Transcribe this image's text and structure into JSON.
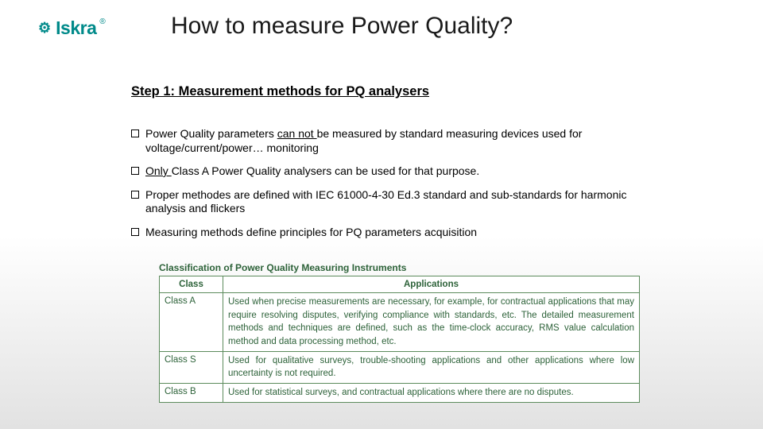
{
  "logo": {
    "brand": "Iskra",
    "reg": "®"
  },
  "title": "How to measure Power Quality?",
  "subtitle": "Step 1: Measurement methods for PQ analysers",
  "bullets": [
    {
      "pre": "Power Quality parameters ",
      "u": "can not ",
      "post": "be measured by standard measuring devices used for voltage/current/power… monitoring"
    },
    {
      "pre": "",
      "u": "Only ",
      "post": "Class A Power Quality analysers  can be used for that purpose."
    },
    {
      "pre": "Proper methodes are defined with IEC 61000-4-30 Ed.3 standard and sub-standards for harmonic analysis and flickers",
      "u": "",
      "post": ""
    },
    {
      "pre": "Measuring methods define principles for PQ parameters acquisition",
      "u": "",
      "post": ""
    }
  ],
  "table": {
    "caption": "Classification of Power Quality Measuring Instruments",
    "headers": [
      "Class",
      "Applications"
    ],
    "rows": [
      {
        "cls": "Class A",
        "app": "Used when precise measurements are necessary, for example, for contractual applications that may require resolving disputes, verifying compliance with standards, etc.\nThe detailed measurement methods and techniques are defined, such as the time-clock accuracy, RMS value calculation method and data processing method, etc."
      },
      {
        "cls": "Class S",
        "app": "Used for qualitative surveys, trouble-shooting applications and other applications where low uncertainty is not required."
      },
      {
        "cls": "Class B",
        "app": "Used for statistical surveys, and contractual applications where there are no disputes."
      }
    ]
  },
  "colors": {
    "brand": "#008a8a",
    "table_border": "#5c8b5c",
    "table_text": "#2d6239"
  }
}
